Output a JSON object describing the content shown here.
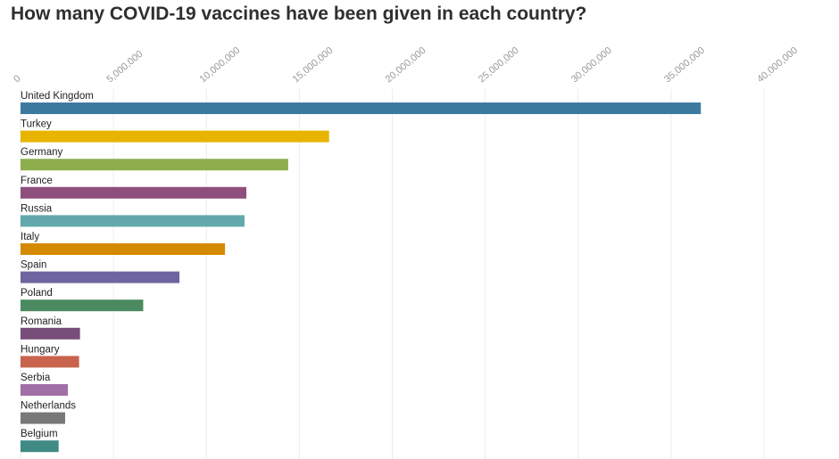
{
  "chart_data": {
    "type": "bar",
    "orientation": "horizontal",
    "title": "How many COVID-19 vaccines have been given in each country?",
    "xlabel": "",
    "ylabel": "",
    "xlim": [
      0,
      40000000
    ],
    "tick_values": [
      0,
      5000000,
      10000000,
      15000000,
      20000000,
      25000000,
      30000000,
      35000000,
      40000000
    ],
    "tick_labels": [
      "0",
      "5,000,000",
      "10,000,000",
      "15,000,000",
      "20,000,000",
      "25,000,000",
      "30,000,000",
      "35,000,000",
      "40,000,000"
    ],
    "grid": true,
    "axis_position": "top",
    "categories": [
      "United Kingdom",
      "Turkey",
      "Germany",
      "France",
      "Russia",
      "Italy",
      "Spain",
      "Poland",
      "Romania",
      "Hungary",
      "Serbia",
      "Netherlands",
      "Belgium"
    ],
    "values": [
      36600000,
      16600000,
      14400000,
      12150000,
      12050000,
      11000000,
      8550000,
      6600000,
      3200000,
      3150000,
      2550000,
      2400000,
      2050000
    ],
    "colors": [
      "#3d7aa0",
      "#e8b400",
      "#8eae4d",
      "#8e4f7c",
      "#62a8ad",
      "#d48a00",
      "#6d64a0",
      "#4b8a60",
      "#774d79",
      "#c8644e",
      "#a16fa7",
      "#787878",
      "#3f8a84"
    ]
  }
}
